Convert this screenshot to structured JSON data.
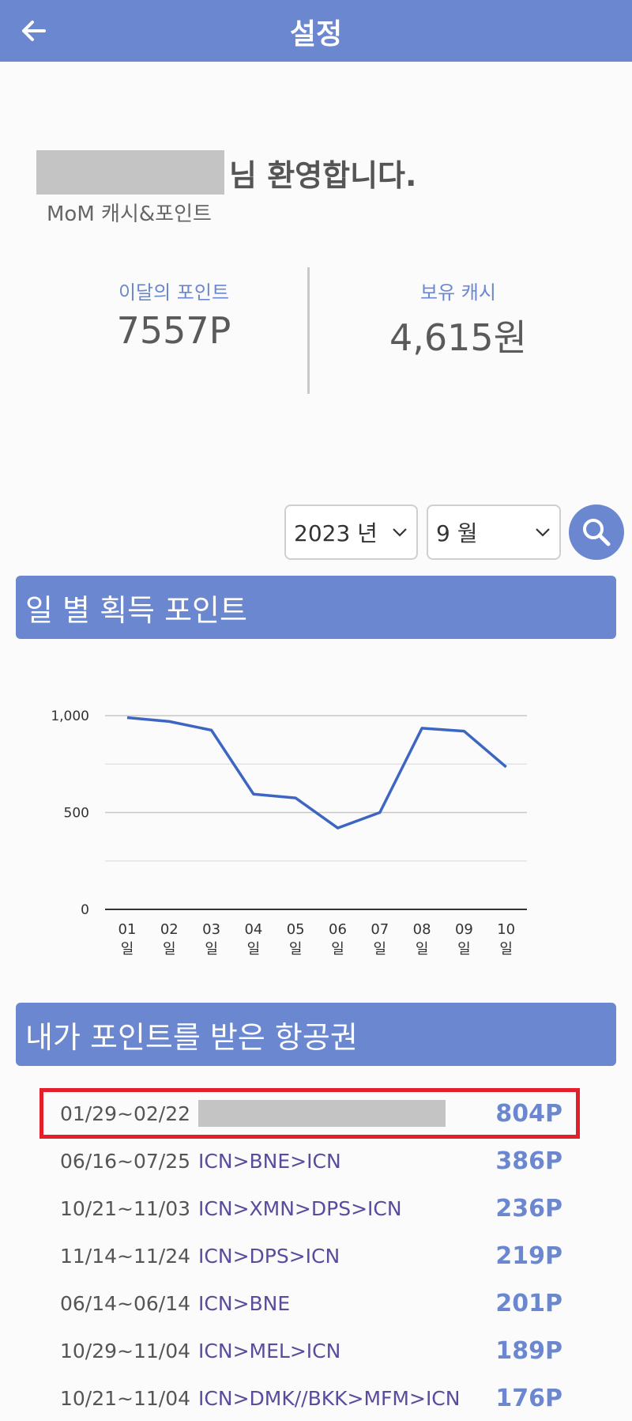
{
  "header": {
    "title": "설정"
  },
  "welcome": {
    "suffix": "님 환영합니다.",
    "service": "MoM 캐시&포인트"
  },
  "stats": {
    "points_label": "이달의 포인트",
    "points_value": "7557P",
    "cash_label": "보유 캐시",
    "cash_value": "4,615원"
  },
  "filters": {
    "year": "2023 년",
    "month": "9 월"
  },
  "sections": {
    "daily": "일 별 획득 포인트",
    "tickets": "내가 포인트를 받은 항공권"
  },
  "chart_data": {
    "type": "line",
    "categories": [
      "01\n일",
      "02\n일",
      "03\n일",
      "04\n일",
      "05\n일",
      "06\n일",
      "07\n일",
      "08\n일",
      "09\n일",
      "10\n일"
    ],
    "category_lines": [
      [
        "01",
        "일"
      ],
      [
        "02",
        "일"
      ],
      [
        "03",
        "일"
      ],
      [
        "04",
        "일"
      ],
      [
        "05",
        "일"
      ],
      [
        "06",
        "일"
      ],
      [
        "07",
        "일"
      ],
      [
        "08",
        "일"
      ],
      [
        "09",
        "일"
      ],
      [
        "10",
        "일"
      ]
    ],
    "values": [
      990,
      970,
      925,
      595,
      575,
      420,
      500,
      935,
      920,
      735
    ],
    "ylim": [
      0,
      1000
    ],
    "yticks": [
      {
        "value": 0,
        "label": "0"
      },
      {
        "value": 500,
        "label": "500"
      },
      {
        "value": 1000,
        "label": "1,000"
      }
    ],
    "gridlines": [
      250,
      500,
      750,
      1000
    ],
    "line_color": "#3d66c2",
    "legend": "none"
  },
  "tickets": [
    {
      "date": "01/29~02/22",
      "route": "",
      "points": "804P",
      "highlight": true
    },
    {
      "date": "06/16~07/25",
      "route": "ICN>BNE>ICN",
      "points": "386P"
    },
    {
      "date": "10/21~11/03",
      "route": "ICN>XMN>DPS>ICN",
      "points": "236P"
    },
    {
      "date": "11/14~11/24",
      "route": "ICN>DPS>ICN",
      "points": "219P"
    },
    {
      "date": "06/14~06/14",
      "route": "ICN>BNE",
      "points": "201P"
    },
    {
      "date": "10/29~11/04",
      "route": "ICN>MEL>ICN",
      "points": "189P"
    },
    {
      "date": "10/21~11/04",
      "route": "ICN>DMK//BKK>MFM>ICN",
      "points": "176P"
    }
  ],
  "colors": {
    "accent": "#6b87cf",
    "highlight": "#e21f2b",
    "route": "#5a4b9c"
  },
  "icons": {
    "back": "arrow-left-icon",
    "search": "magnifier-icon",
    "dropdown": "chevron-down-icon"
  }
}
